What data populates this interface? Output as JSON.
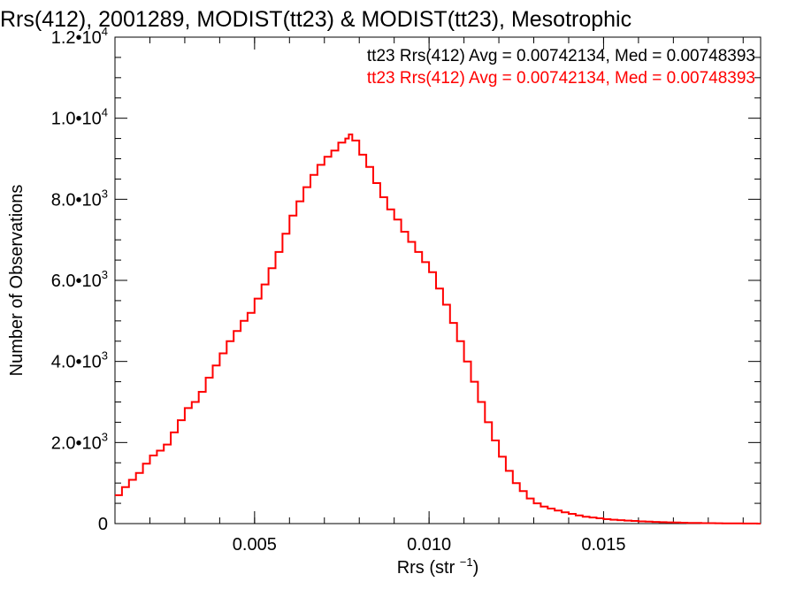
{
  "chart_data": {
    "type": "line",
    "title": "Rrs(412), 2001289, MODIST(tt23) & MODIST(tt23), Mesotrophic",
    "xlabel": "Rrs (str⁻¹)",
    "ylabel": "Number of Observations",
    "xlim": [
      0.001,
      0.0195
    ],
    "ylim": [
      0,
      12000
    ],
    "x_ticks": [
      {
        "value": 0.005,
        "label": "0.005"
      },
      {
        "value": 0.01,
        "label": "0.010"
      },
      {
        "value": 0.015,
        "label": "0.015"
      }
    ],
    "y_ticks": [
      {
        "value": 0,
        "mantissa": "0",
        "exp": ""
      },
      {
        "value": 2000,
        "mantissa": "2.0•10",
        "exp": "3"
      },
      {
        "value": 4000,
        "mantissa": "4.0•10",
        "exp": "3"
      },
      {
        "value": 6000,
        "mantissa": "6.0•10",
        "exp": "3"
      },
      {
        "value": 8000,
        "mantissa": "8.0•10",
        "exp": "3"
      },
      {
        "value": 10000,
        "mantissa": "1.0•10",
        "exp": "4"
      },
      {
        "value": 12000,
        "mantissa": "1.2•10",
        "exp": "4"
      }
    ],
    "legend": [
      {
        "text": "tt23 Rrs(412) Avg = 0.00742134, Med = 0.00748393",
        "color": "#000000"
      },
      {
        "text": "tt23 Rrs(412) Avg = 0.00742134, Med = 0.00748393",
        "color": "#ff0000"
      }
    ],
    "legend_position": "top-right",
    "series": [
      {
        "color": "#ff0000",
        "step": true,
        "points": [
          [
            0.001,
            700
          ],
          [
            0.0012,
            900
          ],
          [
            0.0014,
            1080
          ],
          [
            0.0016,
            1250
          ],
          [
            0.0018,
            1480
          ],
          [
            0.002,
            1680
          ],
          [
            0.0022,
            1800
          ],
          [
            0.0024,
            1950
          ],
          [
            0.0026,
            2250
          ],
          [
            0.0028,
            2550
          ],
          [
            0.003,
            2850
          ],
          [
            0.0032,
            3000
          ],
          [
            0.0034,
            3250
          ],
          [
            0.0036,
            3600
          ],
          [
            0.0038,
            3900
          ],
          [
            0.004,
            4200
          ],
          [
            0.0042,
            4500
          ],
          [
            0.0044,
            4750
          ],
          [
            0.0046,
            5000
          ],
          [
            0.0048,
            5200
          ],
          [
            0.005,
            5550
          ],
          [
            0.0052,
            5900
          ],
          [
            0.0054,
            6300
          ],
          [
            0.0056,
            6700
          ],
          [
            0.0058,
            7150
          ],
          [
            0.006,
            7600
          ],
          [
            0.0062,
            7950
          ],
          [
            0.0064,
            8300
          ],
          [
            0.0066,
            8600
          ],
          [
            0.0068,
            8850
          ],
          [
            0.007,
            9050
          ],
          [
            0.0072,
            9200
          ],
          [
            0.0074,
            9400
          ],
          [
            0.0076,
            9500
          ],
          [
            0.0077,
            9600
          ],
          [
            0.0078,
            9450
          ],
          [
            0.008,
            9100
          ],
          [
            0.0082,
            8800
          ],
          [
            0.0084,
            8400
          ],
          [
            0.0086,
            8050
          ],
          [
            0.0088,
            7750
          ],
          [
            0.009,
            7500
          ],
          [
            0.0092,
            7200
          ],
          [
            0.0094,
            6950
          ],
          [
            0.0096,
            6700
          ],
          [
            0.0098,
            6450
          ],
          [
            0.01,
            6200
          ],
          [
            0.0102,
            5800
          ],
          [
            0.0104,
            5400
          ],
          [
            0.0106,
            4950
          ],
          [
            0.0108,
            4500
          ],
          [
            0.011,
            4000
          ],
          [
            0.0112,
            3500
          ],
          [
            0.0114,
            3000
          ],
          [
            0.0116,
            2500
          ],
          [
            0.0118,
            2050
          ],
          [
            0.012,
            1650
          ],
          [
            0.0122,
            1300
          ],
          [
            0.0124,
            1000
          ],
          [
            0.0126,
            800
          ],
          [
            0.0128,
            620
          ],
          [
            0.013,
            500
          ],
          [
            0.0132,
            420
          ],
          [
            0.0134,
            370
          ],
          [
            0.0136,
            320
          ],
          [
            0.0138,
            280
          ],
          [
            0.014,
            240
          ],
          [
            0.0142,
            200
          ],
          [
            0.0144,
            170
          ],
          [
            0.0146,
            150
          ],
          [
            0.0148,
            130
          ],
          [
            0.015,
            110
          ],
          [
            0.0152,
            95
          ],
          [
            0.0154,
            85
          ],
          [
            0.0156,
            75
          ],
          [
            0.0158,
            65
          ],
          [
            0.016,
            55
          ],
          [
            0.0162,
            48
          ],
          [
            0.0164,
            42
          ],
          [
            0.0166,
            36
          ],
          [
            0.0168,
            30
          ],
          [
            0.017,
            26
          ],
          [
            0.0172,
            22
          ],
          [
            0.0174,
            18
          ],
          [
            0.0176,
            15
          ],
          [
            0.0178,
            12
          ],
          [
            0.018,
            10
          ],
          [
            0.0182,
            8
          ],
          [
            0.0184,
            6
          ],
          [
            0.0186,
            5
          ],
          [
            0.0188,
            4
          ],
          [
            0.019,
            3
          ],
          [
            0.0192,
            2
          ],
          [
            0.0194,
            1
          ],
          [
            0.0195,
            1
          ]
        ]
      }
    ]
  }
}
